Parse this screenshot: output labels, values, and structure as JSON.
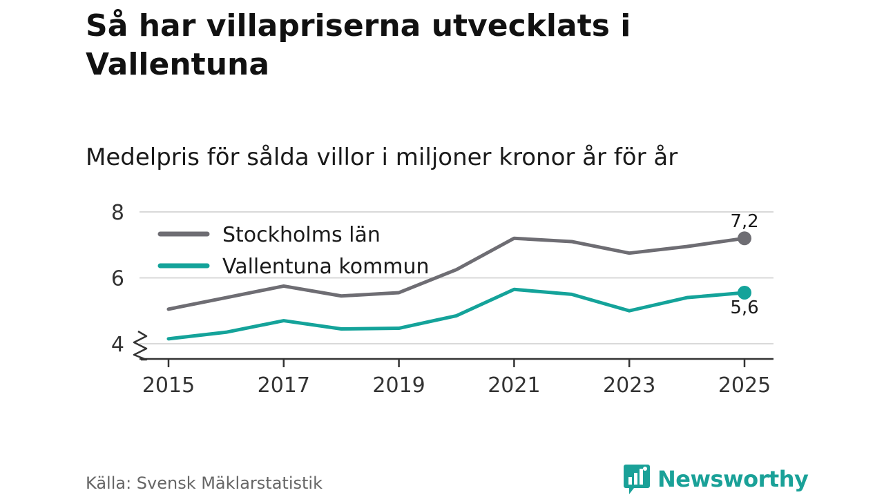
{
  "header": {
    "title": "Så har villapriserna utvecklats i Vallentuna",
    "subtitle": "Medelpris för sålda villor i miljoner kronor år för år"
  },
  "footer": {
    "source": "Källa: Svensk Mäklarstatistik",
    "brand": "Newsworthy"
  },
  "colors": {
    "stockholm": "#6e6d73",
    "vallentuna": "#14a39a",
    "grid": "#d9d9d9",
    "axis": "#333333"
  },
  "chart_data": {
    "type": "line",
    "title": "Medelpris för sålda villor i miljoner kronor år för år",
    "xlabel": "",
    "ylabel": "",
    "x": [
      2015,
      2016,
      2017,
      2018,
      2019,
      2020,
      2021,
      2022,
      2023,
      2024,
      2025
    ],
    "xticks": [
      "2015",
      "2017",
      "2019",
      "2021",
      "2023",
      "2025"
    ],
    "xtick_values": [
      2015,
      2017,
      2019,
      2021,
      2023,
      2025
    ],
    "yticks": [
      "4",
      "6",
      "8"
    ],
    "ytick_values": [
      4,
      6,
      8
    ],
    "ylim": [
      4,
      8
    ],
    "y_axis_break": true,
    "legend_position": "top-left",
    "series": [
      {
        "name": "Stockholms län",
        "key": "stockholm",
        "values": [
          5.05,
          5.4,
          5.75,
          5.45,
          5.55,
          6.25,
          7.2,
          7.1,
          6.75,
          6.95,
          7.2
        ],
        "end_label": "7,2"
      },
      {
        "name": "Vallentuna kommun",
        "key": "vallentuna",
        "values": [
          4.15,
          4.35,
          4.7,
          4.45,
          4.47,
          4.85,
          5.65,
          5.5,
          5.0,
          5.4,
          5.55
        ],
        "end_label": "5,6"
      }
    ]
  }
}
